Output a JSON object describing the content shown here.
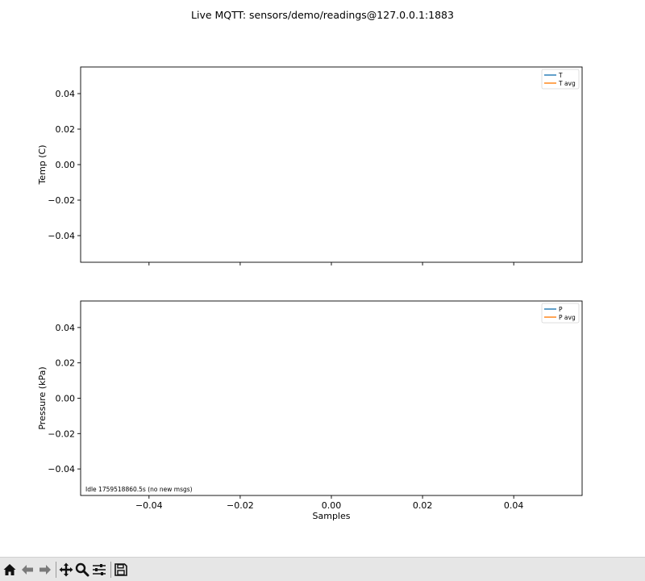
{
  "window": {
    "title": "Live MQTT: sensors/demo/readings@127.0.0.1:1883"
  },
  "chart_data": [
    {
      "type": "line",
      "ylabel": "Temp (C)",
      "xlabel": "",
      "xlim": [
        -0.055,
        0.055
      ],
      "ylim": [
        -0.055,
        0.055
      ],
      "xticks": [
        -0.04,
        -0.02,
        0.0,
        0.02,
        0.04
      ],
      "yticks": [
        0.04,
        0.02,
        0.0,
        -0.02,
        -0.04
      ],
      "ytick_labels": [
        "0.04",
        "0.02",
        "0.00",
        "−0.02",
        "−0.04"
      ],
      "show_xtick_labels": false,
      "legend_position": "top-right",
      "series": [
        {
          "name": "T",
          "color": "#1f77b4",
          "x": [],
          "y": []
        },
        {
          "name": "T avg",
          "color": "#ff7f0e",
          "x": [],
          "y": []
        }
      ],
      "annotation": ""
    },
    {
      "type": "line",
      "ylabel": "Pressure (kPa)",
      "xlabel": "Samples",
      "xlim": [
        -0.055,
        0.055
      ],
      "ylim": [
        -0.055,
        0.055
      ],
      "xticks": [
        -0.04,
        -0.02,
        0.0,
        0.02,
        0.04
      ],
      "xtick_labels": [
        "−0.04",
        "−0.02",
        "0.00",
        "0.02",
        "0.04"
      ],
      "yticks": [
        0.04,
        0.02,
        0.0,
        -0.02,
        -0.04
      ],
      "ytick_labels": [
        "0.04",
        "0.02",
        "0.00",
        "−0.02",
        "−0.04"
      ],
      "show_xtick_labels": true,
      "legend_position": "top-right",
      "series": [
        {
          "name": "P",
          "color": "#1f77b4",
          "x": [],
          "y": []
        },
        {
          "name": "P avg",
          "color": "#ff7f0e",
          "x": [],
          "y": []
        }
      ],
      "annotation": "Idle 1759518860.5s (no new msgs)"
    }
  ],
  "toolbar": {
    "buttons": [
      {
        "name": "home",
        "icon": "home-icon"
      },
      {
        "name": "back",
        "icon": "back-arrow-icon"
      },
      {
        "name": "forward",
        "icon": "forward-arrow-icon"
      },
      {
        "name": "pan",
        "icon": "move-icon"
      },
      {
        "name": "zoom",
        "icon": "magnifier-icon"
      },
      {
        "name": "configure-subplots",
        "icon": "sliders-icon"
      },
      {
        "name": "save",
        "icon": "save-icon"
      }
    ]
  }
}
